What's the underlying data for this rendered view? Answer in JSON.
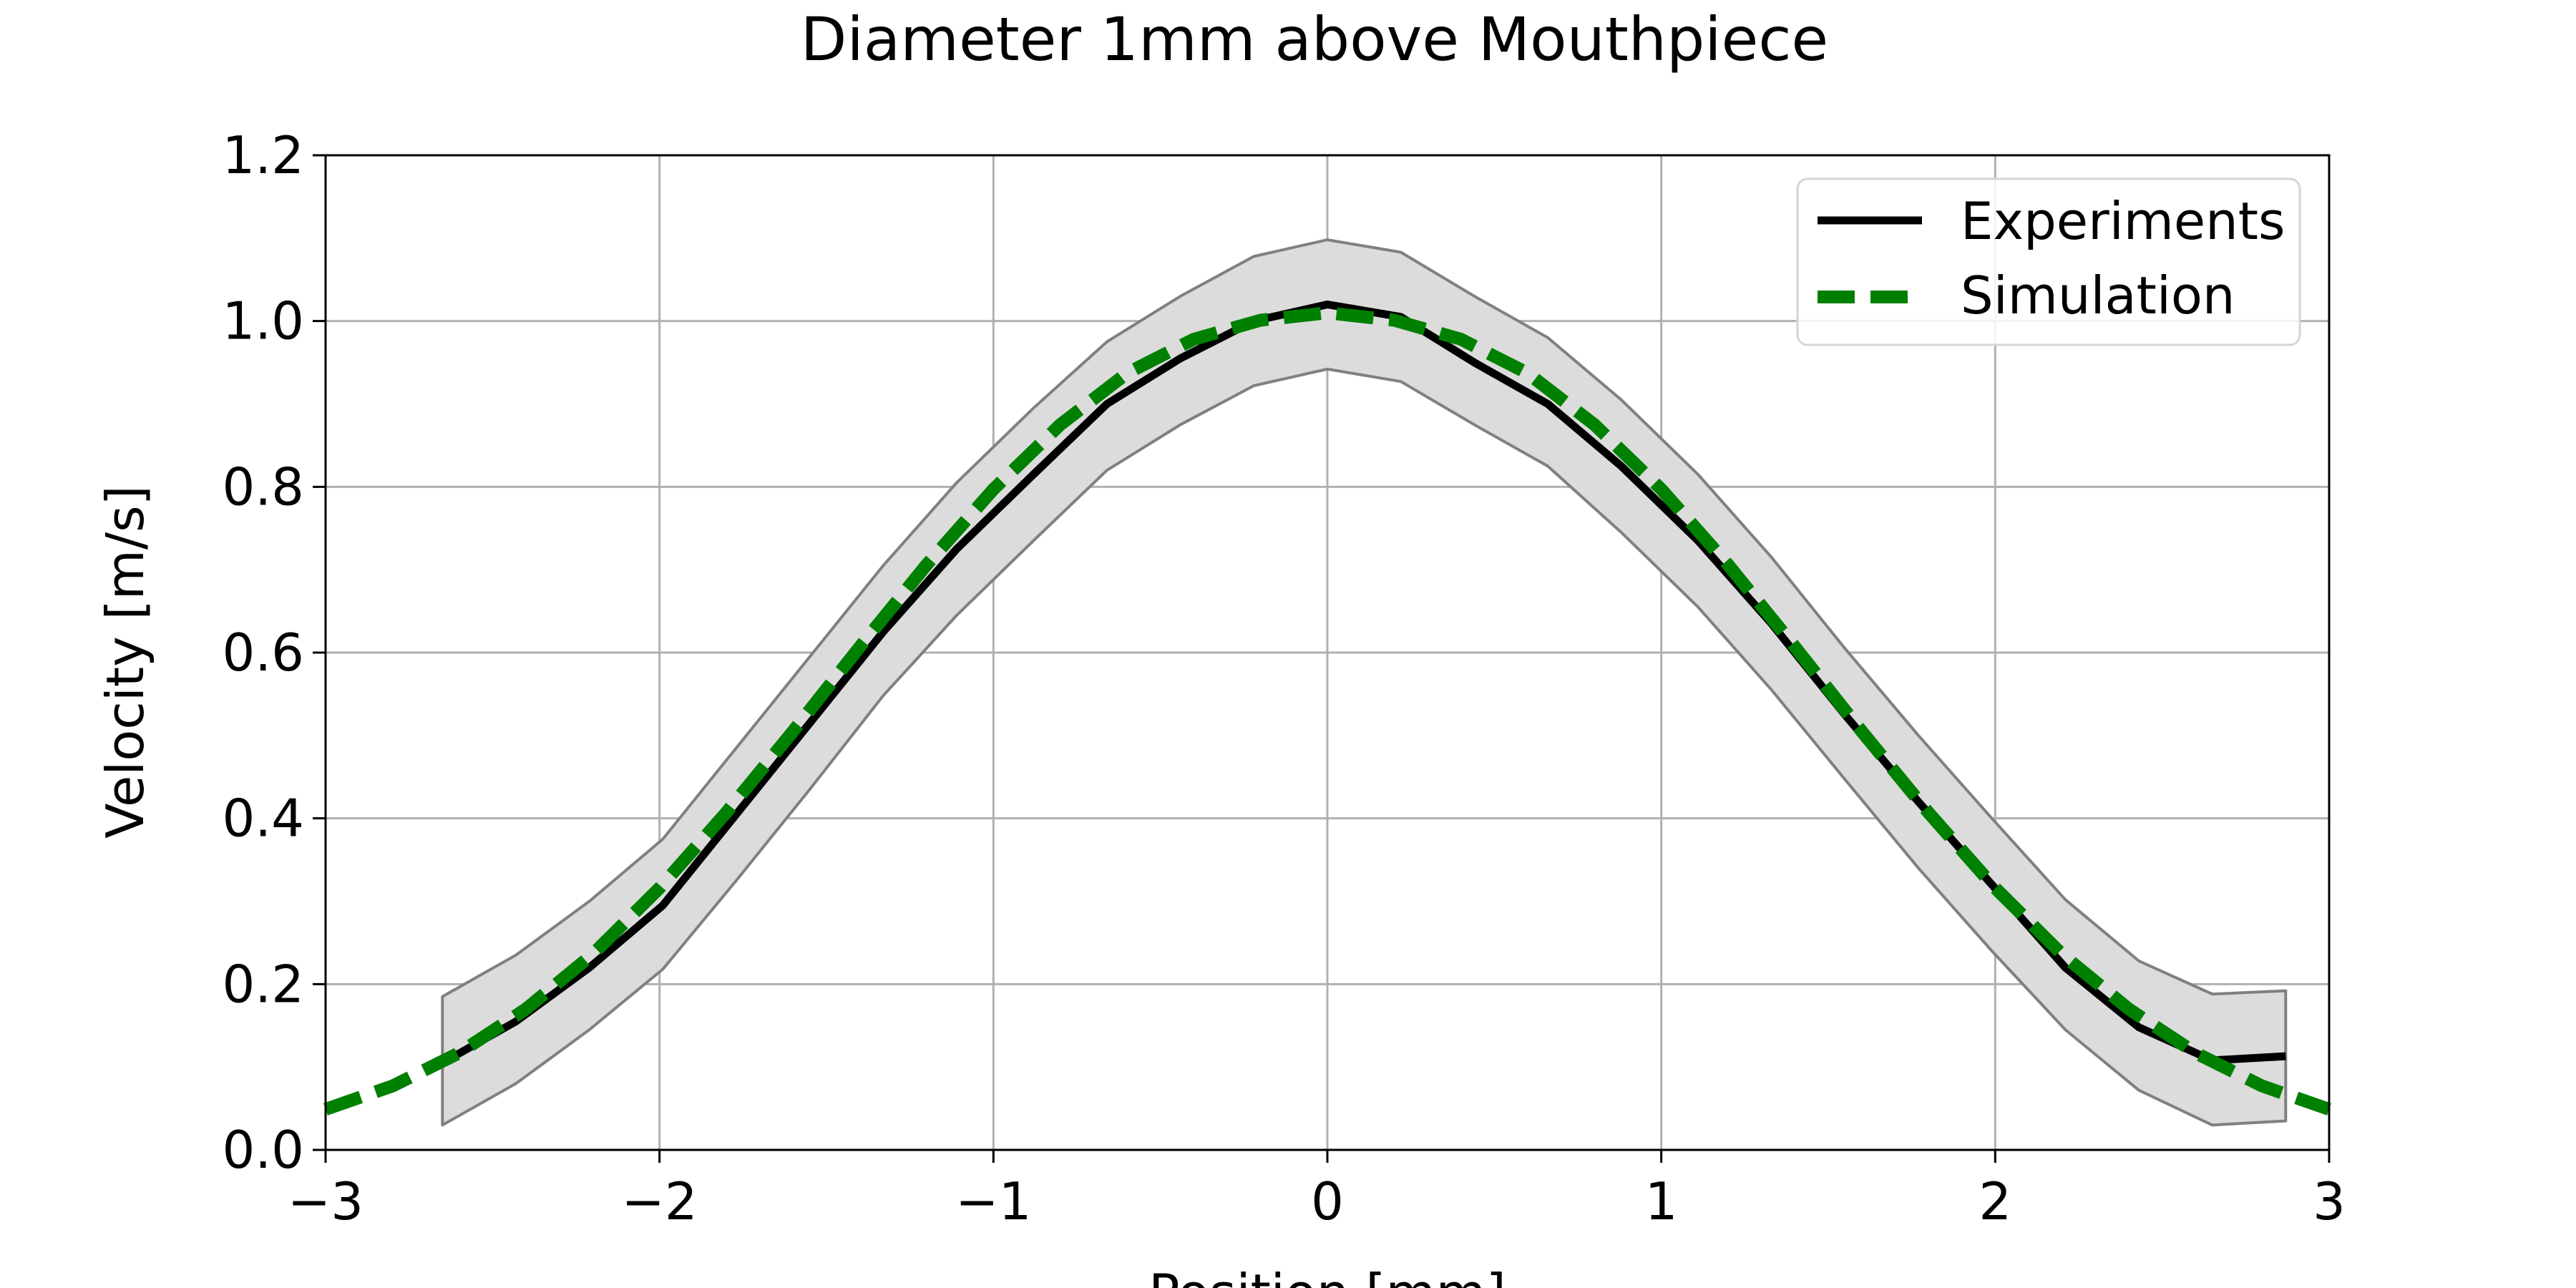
{
  "chart_data": {
    "type": "line",
    "title": "Diameter 1mm above Mouthpiece",
    "xlabel": "Position [mm]",
    "ylabel": "Velocity [m/s]",
    "xlim": [
      -3,
      3
    ],
    "ylim": [
      0,
      1.2
    ],
    "xticks": [
      -3,
      -2,
      -1,
      0,
      1,
      2,
      3
    ],
    "xtick_labels": [
      "−3",
      "−2",
      "−1",
      "0",
      "1",
      "2",
      "3"
    ],
    "yticks": [
      0,
      0.2,
      0.4,
      0.6,
      0.8,
      1.0,
      1.2
    ],
    "ytick_labels": [
      "0.0",
      "0.2",
      "0.4",
      "0.6",
      "0.8",
      "1.0",
      "1.2"
    ],
    "grid": true,
    "legend_position": "top-right",
    "series": [
      {
        "name": "Experiments",
        "style": "solid",
        "color": "#000000",
        "x": [
          -2.65,
          -2.43,
          -2.21,
          -1.99,
          -1.77,
          -1.55,
          -1.33,
          -1.11,
          -0.88,
          -0.66,
          -0.44,
          -0.22,
          0.0,
          0.22,
          0.44,
          0.66,
          0.88,
          1.11,
          1.33,
          1.55,
          1.77,
          1.99,
          2.21,
          2.43,
          2.65,
          2.87
        ],
        "y": [
          0.105,
          0.155,
          0.22,
          0.295,
          0.405,
          0.515,
          0.625,
          0.725,
          0.815,
          0.9,
          0.955,
          1.0,
          1.02,
          1.005,
          0.95,
          0.9,
          0.825,
          0.735,
          0.635,
          0.525,
          0.42,
          0.32,
          0.22,
          0.148,
          0.108,
          0.113
        ]
      },
      {
        "name": "Simulation",
        "style": "dashed",
        "color": "#008000",
        "x": [
          -3.0,
          -2.8,
          -2.6,
          -2.4,
          -2.2,
          -2.0,
          -1.8,
          -1.6,
          -1.4,
          -1.2,
          -1.0,
          -0.8,
          -0.6,
          -0.4,
          -0.2,
          0.0,
          0.2,
          0.4,
          0.6,
          0.8,
          1.0,
          1.2,
          1.4,
          1.6,
          1.8,
          2.0,
          2.2,
          2.4,
          2.6,
          2.8,
          3.0
        ],
        "y": [
          0.049,
          0.077,
          0.117,
          0.17,
          0.236,
          0.316,
          0.407,
          0.505,
          0.607,
          0.706,
          0.797,
          0.875,
          0.937,
          0.978,
          1.001,
          1.01,
          1.001,
          0.978,
          0.937,
          0.875,
          0.797,
          0.706,
          0.607,
          0.505,
          0.407,
          0.316,
          0.236,
          0.17,
          0.117,
          0.077,
          0.049
        ]
      }
    ],
    "band": {
      "color": "#dcdcdc",
      "edge_color": "#808080",
      "x": [
        -2.65,
        -2.43,
        -2.21,
        -1.99,
        -1.77,
        -1.55,
        -1.33,
        -1.11,
        -0.88,
        -0.66,
        -0.44,
        -0.22,
        0.0,
        0.22,
        0.44,
        0.66,
        0.88,
        1.11,
        1.33,
        1.55,
        1.77,
        1.99,
        2.21,
        2.43,
        2.65,
        2.87
      ],
      "upper": [
        0.185,
        0.235,
        0.3,
        0.375,
        0.485,
        0.595,
        0.705,
        0.805,
        0.895,
        0.975,
        1.03,
        1.078,
        1.098,
        1.083,
        1.03,
        0.98,
        0.905,
        0.815,
        0.715,
        0.605,
        0.5,
        0.4,
        0.302,
        0.228,
        0.188,
        0.192
      ],
      "lower": [
        0.03,
        0.08,
        0.145,
        0.218,
        0.325,
        0.435,
        0.548,
        0.645,
        0.735,
        0.82,
        0.875,
        0.922,
        0.942,
        0.927,
        0.875,
        0.825,
        0.745,
        0.655,
        0.555,
        0.447,
        0.34,
        0.24,
        0.145,
        0.072,
        0.03,
        0.035
      ]
    }
  }
}
